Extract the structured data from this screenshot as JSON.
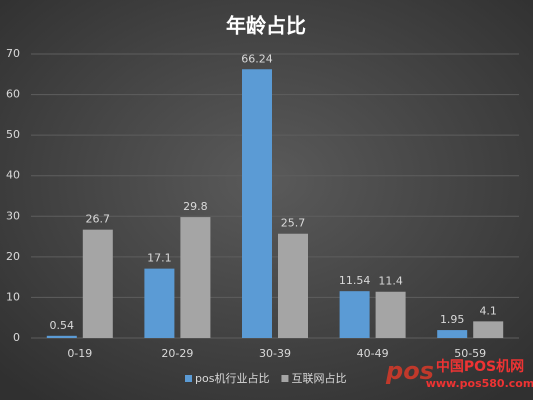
{
  "chart_data": {
    "type": "bar",
    "title": "年龄占比",
    "categories": [
      "0-19",
      "20-29",
      "30-39",
      "40-49",
      "50-59"
    ],
    "series": [
      {
        "name": "pos机行业占比",
        "color": "#5b9bd5",
        "values": [
          0.54,
          17.1,
          66.24,
          11.54,
          1.95
        ]
      },
      {
        "name": "互联网占比",
        "color": "#a5a5a5",
        "values": [
          26.7,
          29.8,
          25.7,
          11.4,
          4.1
        ]
      }
    ],
    "ylim": [
      0,
      70
    ],
    "yticks": [
      0,
      10,
      20,
      30,
      40,
      50,
      60,
      70
    ],
    "grid": true,
    "legend": "bottom",
    "watermark": {
      "logo": "pos",
      "name": "中国POS机网",
      "url": "www.pos580.com"
    }
  }
}
